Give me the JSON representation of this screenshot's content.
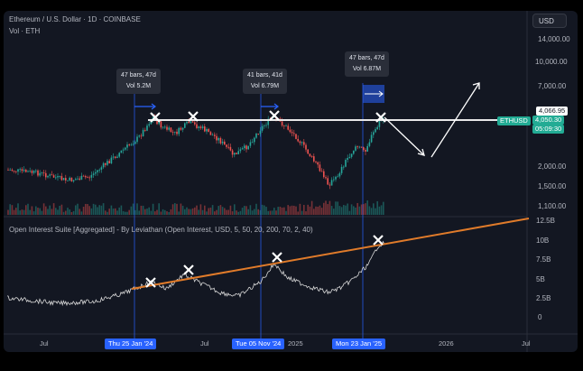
{
  "header": {
    "title": "Ethereum / U.S. Dollar · 1D · COINBASE",
    "volume_label": "Vol · ETH",
    "currency_button": "USD"
  },
  "price_axis": {
    "ticks": [
      "14,000.00",
      "10,000.00",
      "7,000.00",
      "2,000.00",
      "1,500.00",
      "1,100.00"
    ],
    "level_label": "4,066.95",
    "symbol_tag": "ETHUSD",
    "last_price": "4,050.30",
    "countdown": "05:09:30",
    "price_4000_hint": "4,000",
    "price_3000_hint": "3,000"
  },
  "oi_axis": {
    "ticks": [
      "12.5B",
      "10B",
      "7.5B",
      "5B",
      "2.5B",
      "0"
    ]
  },
  "oi_panel": {
    "title": "Open Interest Suite [Aggregated] - By Leviathan (Open Interest, USD, 5, 50, 20, 200, 70, 2, 40)"
  },
  "callouts": [
    {
      "bars": "47 bars, 47d",
      "vol": "Vol 5.2M"
    },
    {
      "bars": "41 bars, 41d",
      "vol": "Vol 6.79M"
    },
    {
      "bars": "47 bars, 47d",
      "vol": "Vol 6.87M"
    }
  ],
  "time_axis": {
    "labels": [
      "Jul",
      "Jul",
      "2025",
      "2026",
      "Jul"
    ],
    "date_chips": [
      "Thu 25 Jan '24",
      "Tue 05 Nov '24",
      "Mon 23 Jan '25"
    ]
  },
  "colors": {
    "background": "#131722",
    "up_candle": "#26a69a",
    "down_candle": "#ef5350",
    "resistance_line": "#ffffff",
    "trendline": "#e07b2a",
    "range_marker": "#2962ff",
    "symbol_tag": "#22ab94"
  }
}
